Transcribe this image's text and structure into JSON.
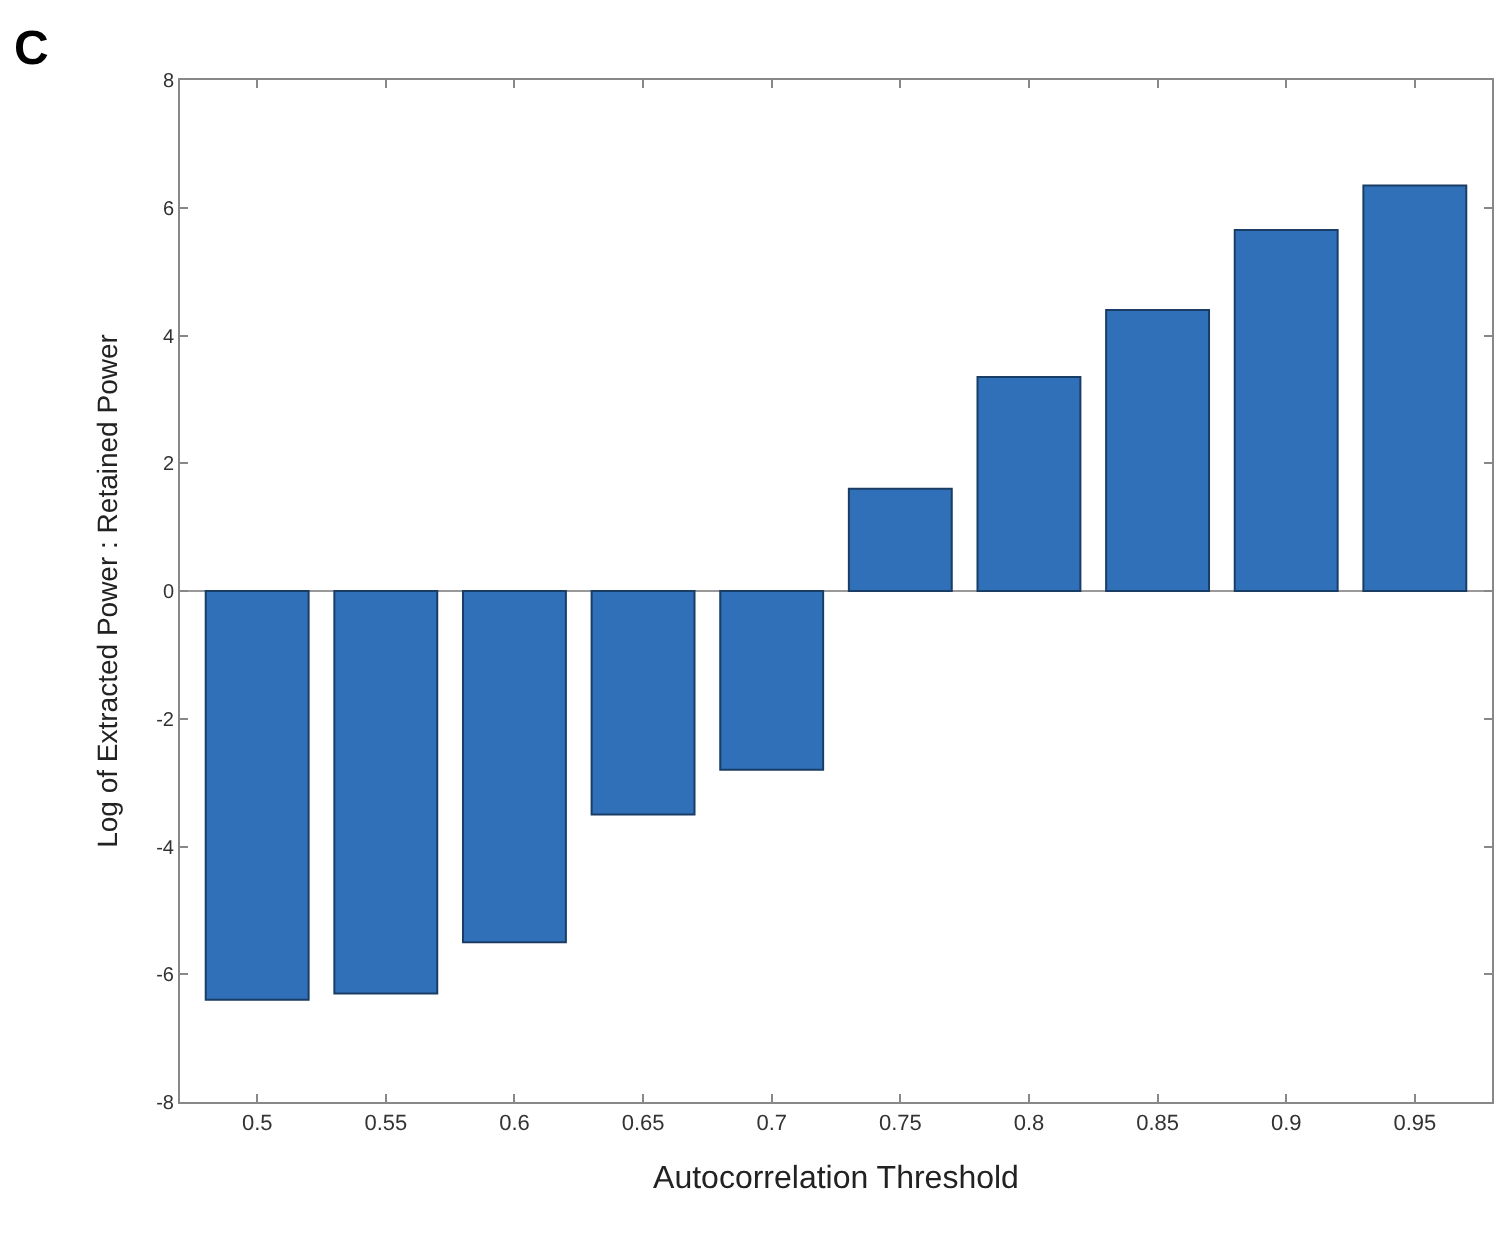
{
  "chart_data": {
    "type": "bar",
    "xlabel": "Autocorrelation Threshold",
    "ylabel": "Log of Extracted Power : Retained Power",
    "annotations": [
      "C"
    ],
    "categories": [
      "0.5",
      "0.55",
      "0.6",
      "0.65",
      "0.7",
      "0.75",
      "0.8",
      "0.85",
      "0.9",
      "0.95"
    ],
    "values": [
      -6.4,
      -6.3,
      -5.5,
      -3.5,
      -2.8,
      1.6,
      3.35,
      4.4,
      5.65,
      6.35
    ],
    "color": "#3070b8",
    "ylim": [
      -8,
      8
    ],
    "yticks": [
      -8,
      -6,
      -4,
      -2,
      0,
      2,
      4,
      6,
      8
    ],
    "ref_lines": [
      {
        "axis": "y",
        "value": 0,
        "color": "#999999"
      }
    ]
  }
}
